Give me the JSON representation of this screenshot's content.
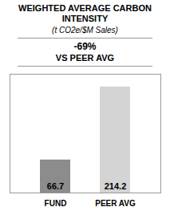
{
  "chart_data": {
    "type": "bar",
    "title": "WEIGHTED AVERAGE CARBON INTENSITY",
    "subtitle": "(t CO2e/$M Sales)",
    "annotations": [
      "-69%",
      "VS PEER AVG"
    ],
    "categories": [
      "FUND",
      "PEER AVG"
    ],
    "values": [
      66.7,
      214.2
    ],
    "colors": [
      "#8c8c8c",
      "#d4d4d4"
    ],
    "ylim": [
      0,
      240
    ],
    "data_labels": true,
    "tick_labels": "x",
    "grid": false
  }
}
